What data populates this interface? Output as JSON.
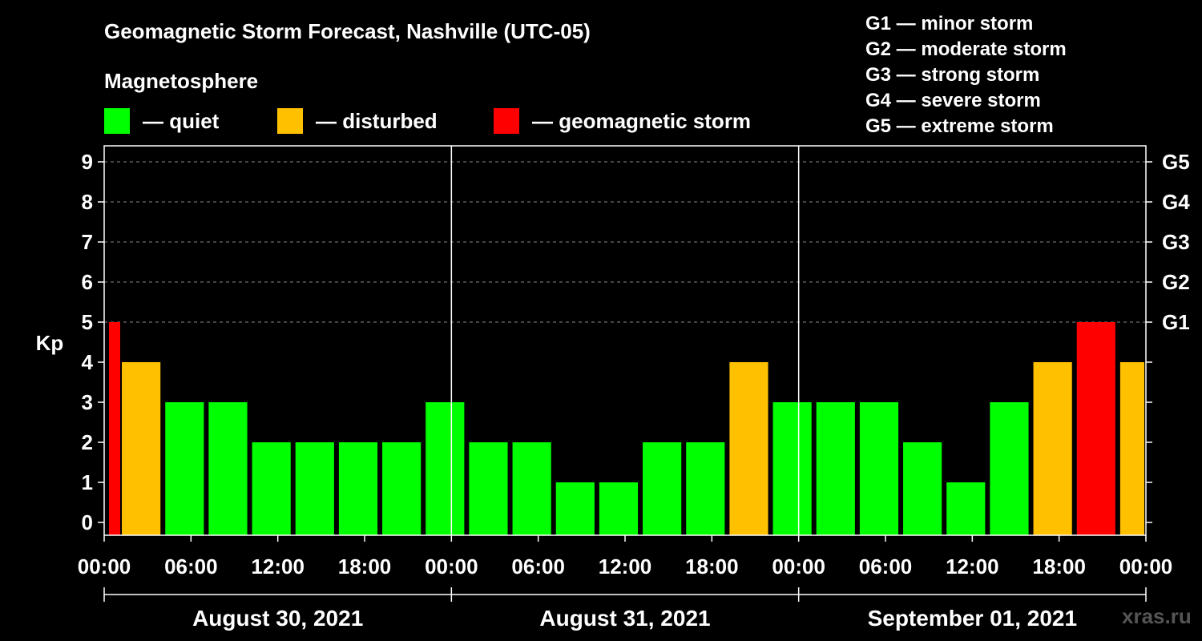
{
  "title": "Geomagnetic Storm Forecast, Nashville (UTC-05)",
  "subtitle": "Magnetosphere",
  "legend": [
    {
      "label": "— quiet",
      "color": "#00ff00"
    },
    {
      "label": "— disturbed",
      "color": "#ffc000"
    },
    {
      "label": "— geomagnetic storm",
      "color": "#ff0000"
    }
  ],
  "g_levels": [
    "G1 — minor storm",
    "G2 — moderate storm",
    "G3 — strong storm",
    "G4 — severe storm",
    "G5 — extreme storm"
  ],
  "watermark": "xras.ru",
  "chart_data": {
    "type": "bar",
    "title": "Geomagnetic Storm Forecast, Nashville (UTC-05)",
    "ylabel": "Kp",
    "ylim": [
      0,
      9
    ],
    "y_ticks": [
      "0",
      "1",
      "2",
      "3",
      "4",
      "5",
      "6",
      "7",
      "8",
      "9"
    ],
    "right_ticks": [
      "G1",
      "G2",
      "G3",
      "G4",
      "G5"
    ],
    "x_ticks": [
      "00:00",
      "06:00",
      "12:00",
      "18:00",
      "00:00",
      "06:00",
      "12:00",
      "18:00",
      "00:00",
      "06:00",
      "12:00",
      "18:00",
      "00:00"
    ],
    "days": [
      "August 30, 2021",
      "August 31, 2021",
      "September 01, 2021"
    ],
    "bar_interval_hours": 3,
    "first_bar_partial": true,
    "values": [
      5,
      4,
      3,
      3,
      2,
      2,
      2,
      2,
      3,
      2,
      2,
      1,
      1,
      2,
      2,
      4,
      3,
      3,
      3,
      2,
      1,
      3,
      4,
      5,
      4
    ],
    "status_colors": {
      "quiet": "#00ff00",
      "disturbed": "#ffc000",
      "storm": "#ff0000"
    }
  }
}
